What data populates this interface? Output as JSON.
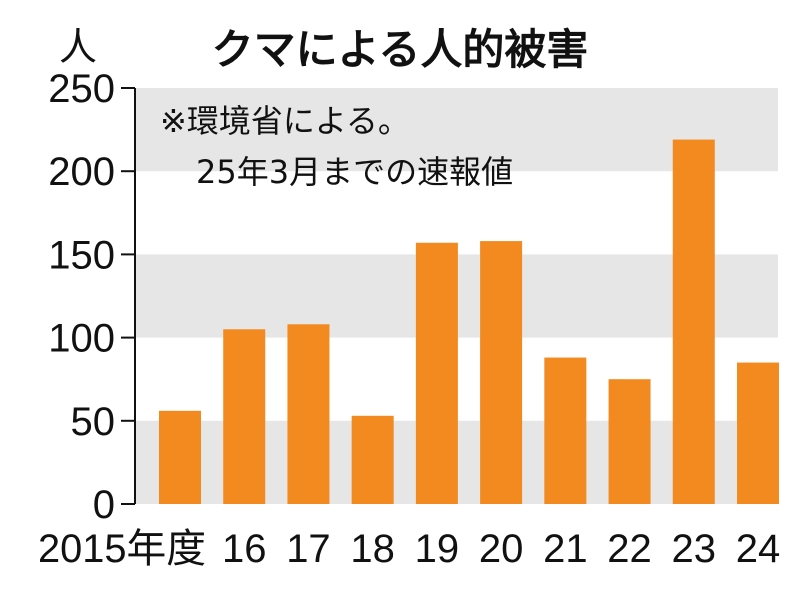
{
  "chart_data": {
    "type": "bar",
    "title": "クマによる人的被害",
    "unit_label": "人",
    "note_line1": "※環境省による。",
    "note_line2": "25年3月までの速報値",
    "categories": [
      "2015年度",
      "16",
      "17",
      "18",
      "19",
      "20",
      "21",
      "22",
      "23",
      "24"
    ],
    "values": [
      56,
      105,
      108,
      53,
      157,
      158,
      88,
      75,
      219,
      85
    ],
    "yticks": [
      0,
      50,
      100,
      150,
      200,
      250
    ],
    "ylim": [
      0,
      250
    ],
    "grid": "alternating horizontal bands",
    "bar_color": "#f28a20",
    "band_color": "#e6e6e6"
  }
}
